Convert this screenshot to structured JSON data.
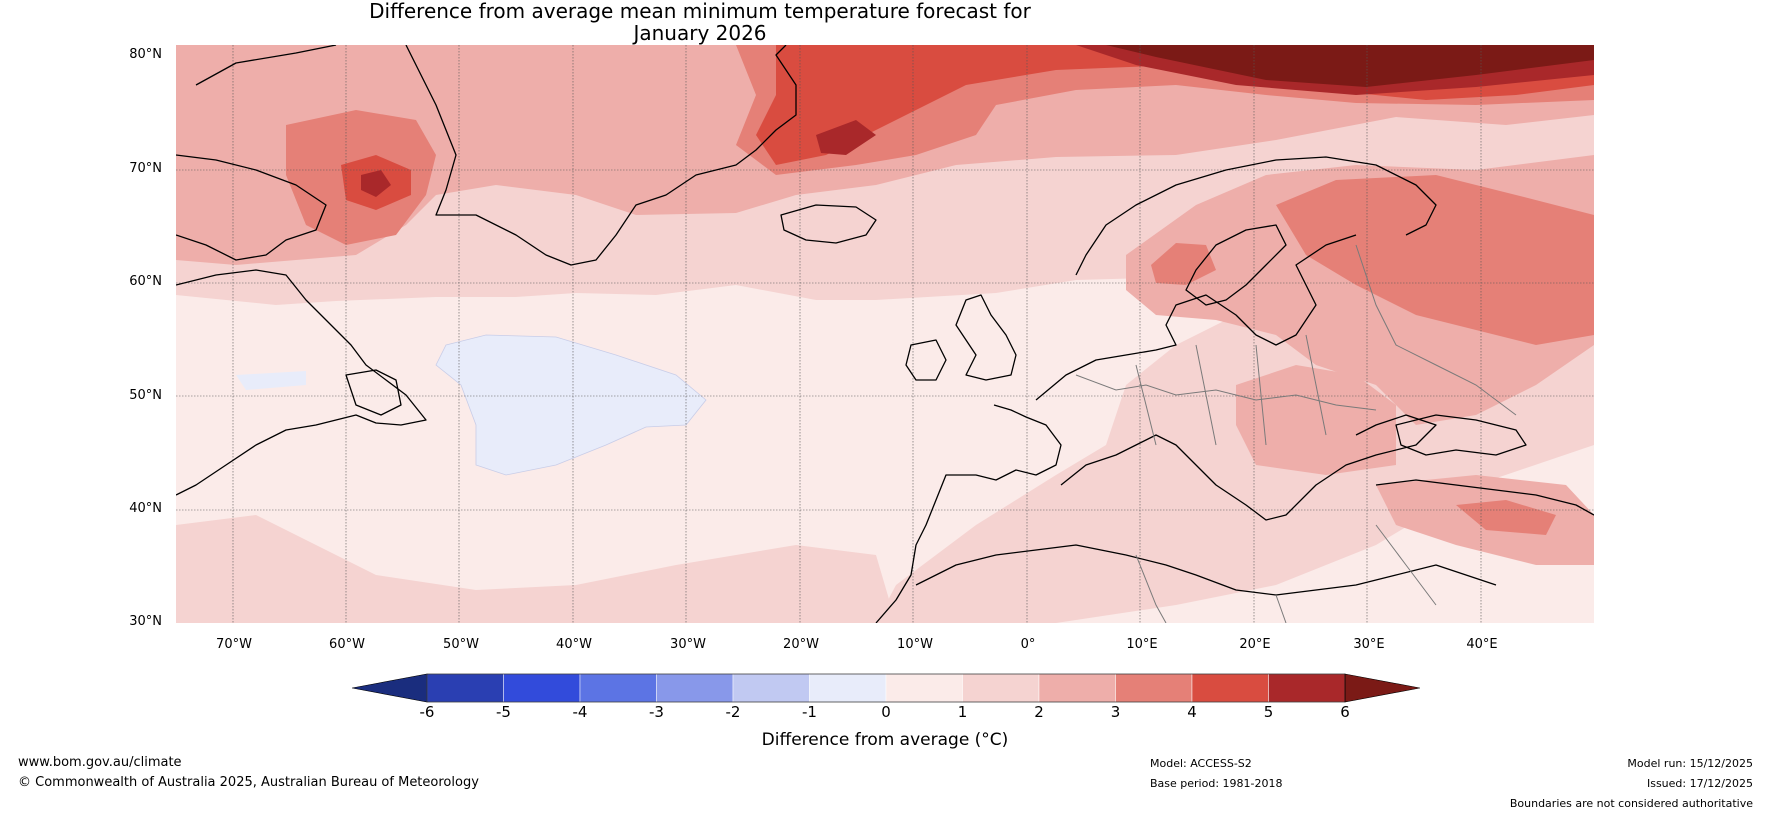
{
  "title_line1": "Difference from average mean minimum temperature forecast for",
  "title_line2": "January 2026",
  "latitude_labels": [
    "80°N",
    "70°N",
    "60°N",
    "50°N",
    "40°N",
    "30°N"
  ],
  "longitude_labels": [
    "70°W",
    "60°W",
    "50°W",
    "40°W",
    "30°W",
    "20°W",
    "10°W",
    "0°",
    "10°E",
    "20°E",
    "30°E",
    "40°E"
  ],
  "map_extent": {
    "lon_min": -75,
    "lon_max": 50,
    "lat_min": 30,
    "lat_max": 81
  },
  "colorbar": {
    "ticks": [
      "-6",
      "-5",
      "-4",
      "-3",
      "-2",
      "-1",
      "0",
      "1",
      "2",
      "3",
      "4",
      "5",
      "6"
    ],
    "colors": [
      "#1a2d7e",
      "#2a3fb2",
      "#324bdb",
      "#5c74e4",
      "#8898ea",
      "#c1c9f2",
      "#e8ecfa",
      "#fbebe9",
      "#f5d3d1",
      "#eeaeaa",
      "#e58077",
      "#d94c40",
      "#a9282a",
      "#7b1a16"
    ],
    "label": "Difference from average (°C)"
  },
  "footer": {
    "website": "www.bom.gov.au/climate",
    "copyright": "© Commonwealth of Australia 2025, Australian Bureau of Meteorology",
    "model": "Model: ACCESS-S2",
    "base_period": "Base period: 1981-2018",
    "model_run": "Model run: 15/12/2025",
    "issued": "Issued: 17/12/2025",
    "disclaimer": "Boundaries are not considered authoritative"
  }
}
